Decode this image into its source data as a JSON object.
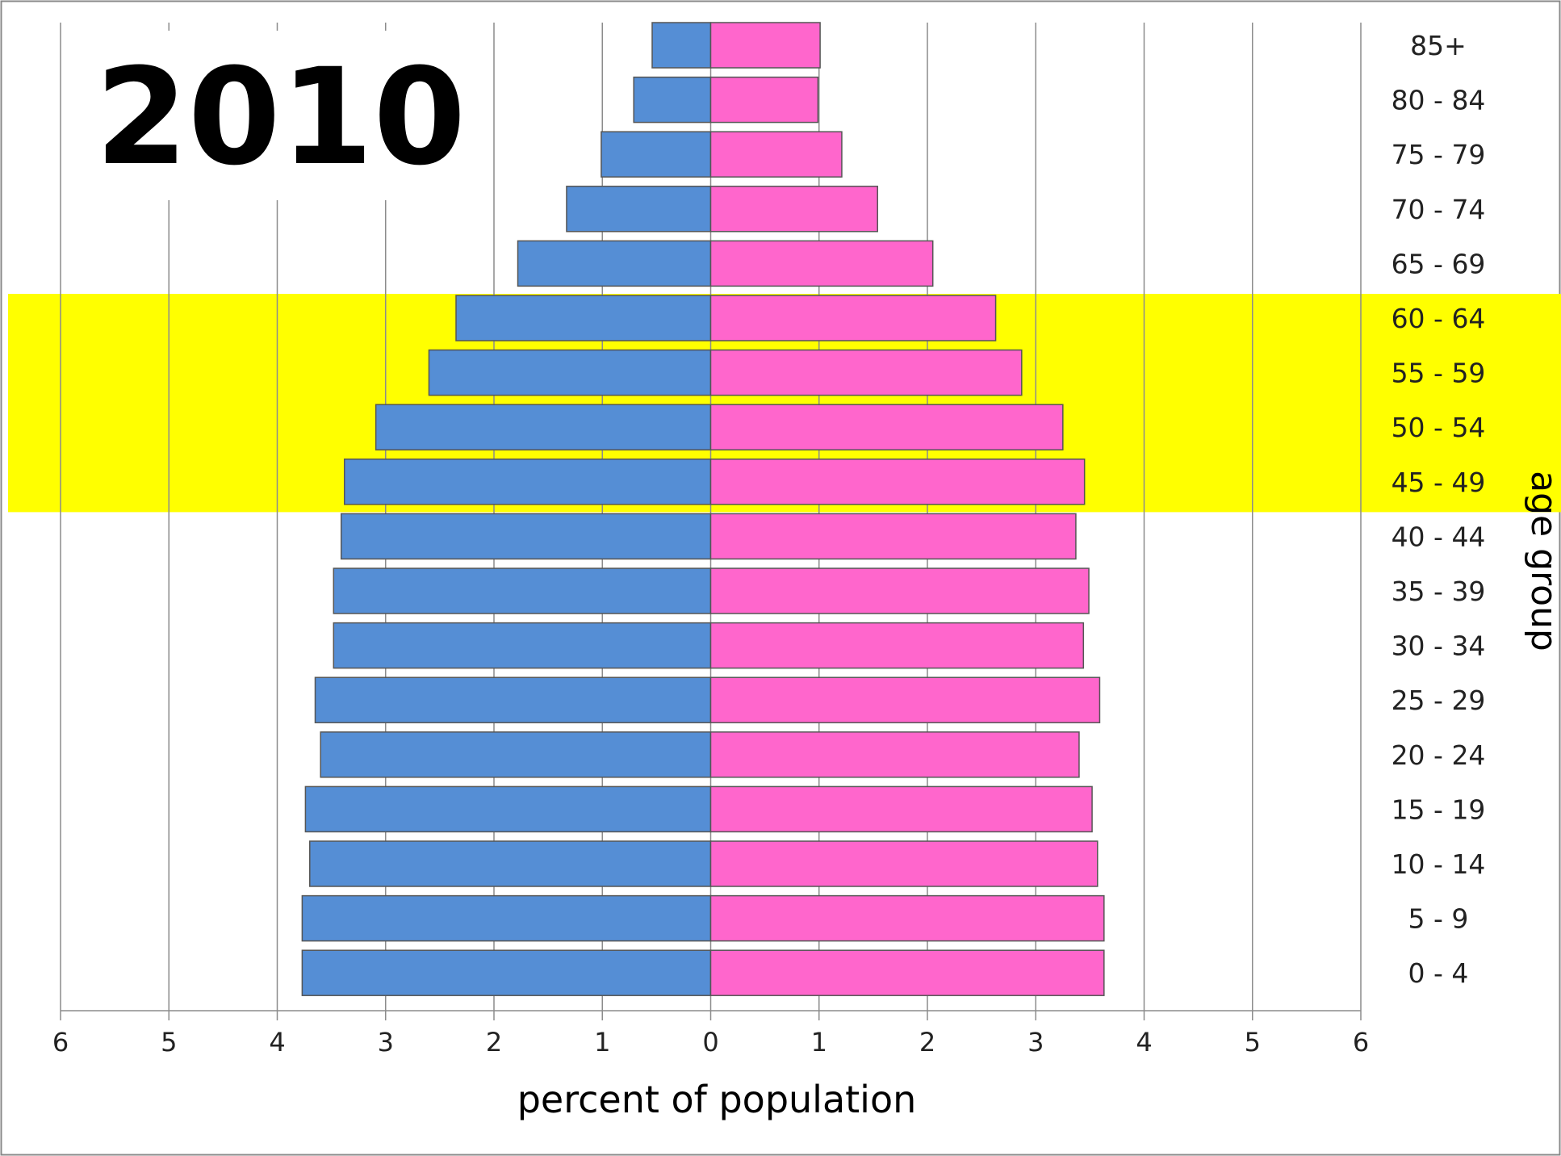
{
  "chart_data": {
    "type": "bar",
    "orientation": "horizontal",
    "layout": "population-pyramid",
    "title": "2010",
    "xlabel": "percent of population",
    "ylabel": "age group",
    "xlim": [
      -6,
      6
    ],
    "x_ticks": [
      -6,
      -5,
      -4,
      -3,
      -2,
      -1,
      0,
      1,
      2,
      3,
      4,
      5,
      6
    ],
    "x_tick_labels": [
      "6",
      "5",
      "4",
      "3",
      "2",
      "1",
      "0",
      "1",
      "2",
      "3",
      "4",
      "5",
      "6"
    ],
    "grid": "vertical",
    "highlight_band": {
      "categories": [
        "45 - 49",
        "50 - 54",
        "55 - 59",
        "60 - 64"
      ],
      "color": "#ffff00"
    },
    "categories": [
      "0 - 4",
      "5 - 9",
      "10 - 14",
      "15 - 19",
      "20 - 24",
      "25 - 29",
      "30 - 34",
      "35 - 39",
      "40 - 44",
      "45 - 49",
      "50 - 54",
      "55 - 59",
      "60 - 64",
      "65 - 69",
      "70 - 74",
      "75 - 79",
      "80 - 84",
      "85+"
    ],
    "series": [
      {
        "side": "left",
        "color": "#558ed5",
        "values": [
          3.77,
          3.77,
          3.7,
          3.74,
          3.6,
          3.65,
          3.48,
          3.48,
          3.41,
          3.38,
          3.09,
          2.6,
          2.35,
          1.78,
          1.33,
          1.01,
          0.71,
          0.54
        ]
      },
      {
        "side": "right",
        "color": "#ff66cc",
        "values": [
          3.63,
          3.63,
          3.57,
          3.52,
          3.4,
          3.59,
          3.44,
          3.49,
          3.37,
          3.45,
          3.25,
          2.87,
          2.63,
          2.05,
          1.54,
          1.21,
          0.99,
          1.01
        ]
      }
    ]
  }
}
